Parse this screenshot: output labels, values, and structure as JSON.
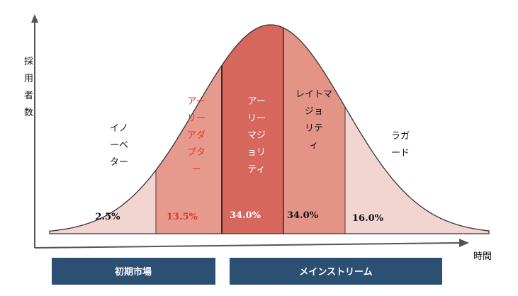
{
  "axes": {
    "y_label": "採用者数",
    "x_label": "時間"
  },
  "segments": [
    {
      "id": "innovators",
      "label_lines": [
        "イノ",
        "ーベ",
        "ター"
      ],
      "percent": "2.5%",
      "fill": "#f2d4d0",
      "text_color": "#111111",
      "pct_color": "#111111"
    },
    {
      "id": "early-adopters",
      "label_lines": [
        "アー",
        "リー",
        "アダ",
        "プタ",
        "ー"
      ],
      "percent": "13.5%",
      "fill": "#e6998d",
      "text_color": "#e8352b",
      "pct_color": "#e8352b"
    },
    {
      "id": "early-majority",
      "label_lines": [
        "アー",
        "リー",
        "マジ",
        "ョリ",
        "ティ"
      ],
      "percent": "34.0%",
      "fill": "#d6675d",
      "text_color": "#ffffff",
      "pct_color": "#ffffff"
    },
    {
      "id": "late-majority",
      "label_lines": [
        "レイトマ",
        "ジョ",
        "リテ",
        "ィ"
      ],
      "percent": "34.0%",
      "fill": "#e39486",
      "text_color": "#111111",
      "pct_color": "#111111"
    },
    {
      "id": "laggards",
      "label_lines": [
        "ラガ",
        "ード"
      ],
      "percent": "16.0%",
      "fill": "#f2d4d0",
      "text_color": "#111111",
      "pct_color": "#111111"
    }
  ],
  "markets": [
    {
      "id": "early-market",
      "label": "初期市場",
      "fill": "#2c5072"
    },
    {
      "id": "mainstream",
      "label": "メインストリーム",
      "fill": "#2c5072"
    }
  ]
}
